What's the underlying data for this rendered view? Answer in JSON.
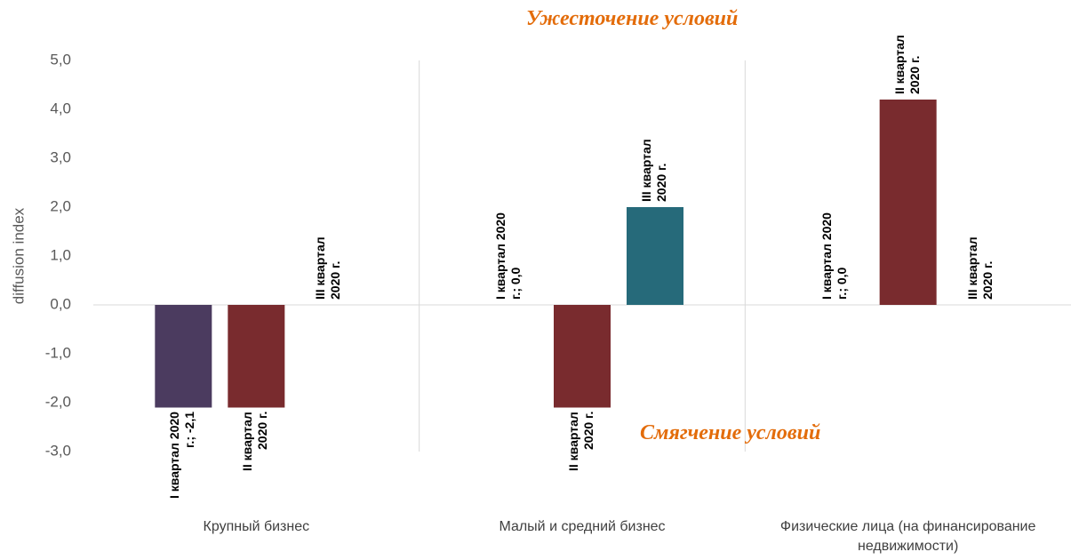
{
  "chart_data": {
    "type": "bar",
    "annotations": [
      "Ужесточение условий",
      "Смягчение условий"
    ],
    "y_label": "diffusion index",
    "categories": [
      "Крупный бизнес",
      "Малый и средний бизнес",
      "Физические лица (на финансирование недвижимости)"
    ],
    "series": [
      {
        "name": "I квартал 2020 г.",
        "color": "#4b3b5f",
        "values": [
          -2.1,
          0,
          0
        ],
        "value_labels": [
          "I квартал 2020 г.; -2,1",
          "I квартал 2020 г.; 0,0",
          "I квартал 2020 г.; 0,0"
        ]
      },
      {
        "name": "II квартал 2020 г.",
        "color": "#792b2e",
        "values": [
          -2.1,
          -2.1,
          4.2
        ],
        "value_labels": [
          "II квартал 2020 г.",
          "II квартал 2020 г.",
          "II квартал 2020 г."
        ]
      },
      {
        "name": "III квартал 2020 г.",
        "color": "#266a7a",
        "values": [
          0,
          2.0,
          0
        ],
        "value_labels": [
          "III квартал 2020 г.",
          "III квартал 2020 г.",
          "III квартал 2020 г."
        ]
      }
    ],
    "ylim": [
      -3,
      5
    ],
    "yticks": [
      {
        "value": -3,
        "label": "-3,0"
      },
      {
        "value": -2,
        "label": "-2,0"
      },
      {
        "value": -1,
        "label": "-1,0"
      },
      {
        "value": 0,
        "label": "0,0"
      },
      {
        "value": 1,
        "label": "1,0"
      },
      {
        "value": 2,
        "label": "2,0"
      },
      {
        "value": 3,
        "label": "3,0"
      },
      {
        "value": 4,
        "label": "4,0"
      },
      {
        "value": 5,
        "label": "5,0"
      }
    ],
    "grid": false
  }
}
